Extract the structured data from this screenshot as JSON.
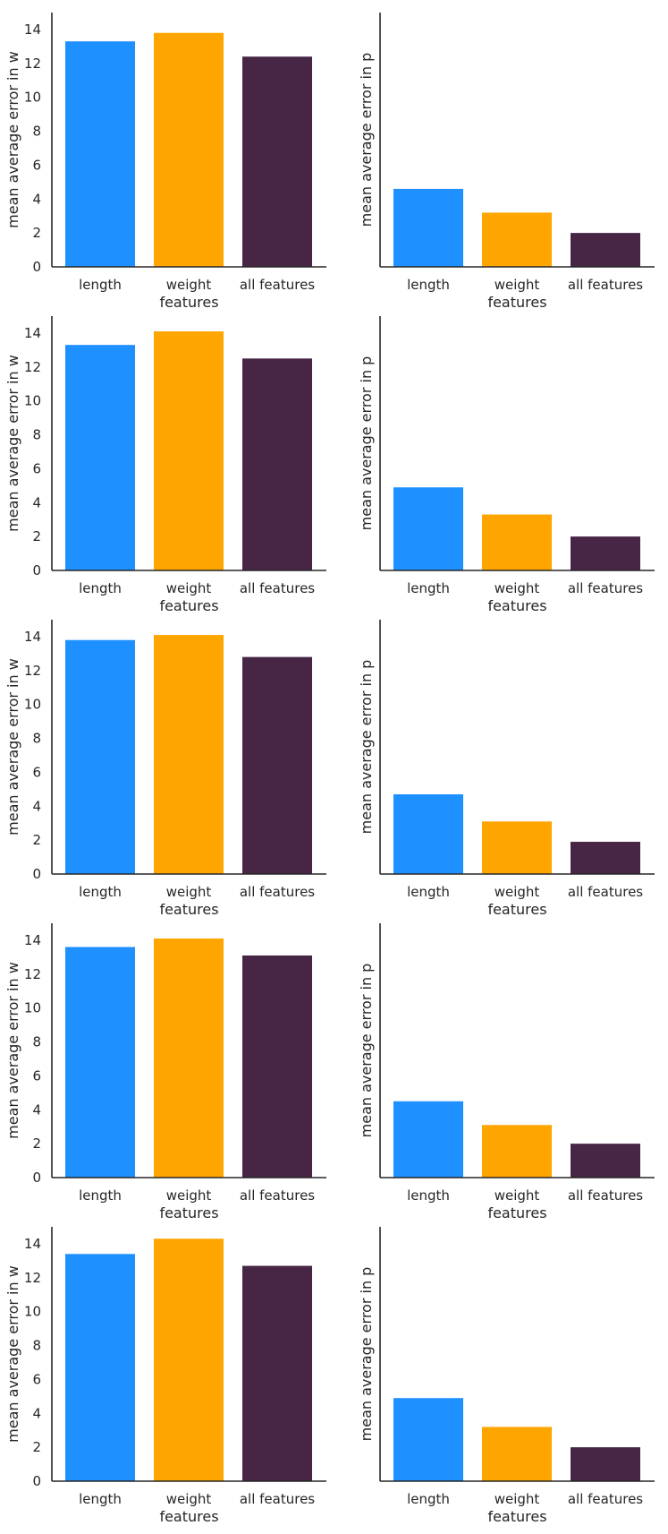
{
  "colors": {
    "axis": "#262626",
    "background": "#ffffff",
    "bars": [
      "#1e90ff",
      "#ffa500",
      "#472545"
    ]
  },
  "chart_data": [
    {
      "type": "bar",
      "panel": "row-1-left",
      "categories": [
        "length",
        "weight",
        "all features"
      ],
      "values": [
        13.3,
        13.8,
        12.4
      ],
      "title": "",
      "xlabel": "features",
      "ylabel": "mean average error in w",
      "ylim": [
        0,
        15
      ],
      "yticks": [
        "0",
        "2",
        "4",
        "6",
        "8",
        "10",
        "12",
        "14"
      ],
      "grid": false
    },
    {
      "type": "bar",
      "panel": "row-1-right",
      "categories": [
        "length",
        "weight",
        "all features"
      ],
      "values": [
        4.6,
        3.2,
        2.0
      ],
      "title": "",
      "xlabel": "features",
      "ylabel": "mean average error in p",
      "ylim": [
        0,
        15
      ],
      "yticks": [],
      "grid": false
    },
    {
      "type": "bar",
      "panel": "row-2-left",
      "categories": [
        "length",
        "weight",
        "all features"
      ],
      "values": [
        13.3,
        14.1,
        12.5
      ],
      "title": "",
      "xlabel": "features",
      "ylabel": "mean average error in w",
      "ylim": [
        0,
        15
      ],
      "yticks": [
        "0",
        "2",
        "4",
        "6",
        "8",
        "10",
        "12",
        "14"
      ],
      "grid": false
    },
    {
      "type": "bar",
      "panel": "row-2-right",
      "categories": [
        "length",
        "weight",
        "all features"
      ],
      "values": [
        4.9,
        3.3,
        2.0
      ],
      "title": "",
      "xlabel": "features",
      "ylabel": "mean average error in p",
      "ylim": [
        0,
        15
      ],
      "yticks": [],
      "grid": false
    },
    {
      "type": "bar",
      "panel": "row-3-left",
      "categories": [
        "length",
        "weight",
        "all features"
      ],
      "values": [
        13.8,
        14.1,
        12.8
      ],
      "title": "",
      "xlabel": "features",
      "ylabel": "mean average error in w",
      "ylim": [
        0,
        15
      ],
      "yticks": [
        "0",
        "2",
        "4",
        "6",
        "8",
        "10",
        "12",
        "14"
      ],
      "grid": false
    },
    {
      "type": "bar",
      "panel": "row-3-right",
      "categories": [
        "length",
        "weight",
        "all features"
      ],
      "values": [
        4.7,
        3.1,
        1.9
      ],
      "title": "",
      "xlabel": "features",
      "ylabel": "mean average error in p",
      "ylim": [
        0,
        15
      ],
      "yticks": [],
      "grid": false
    },
    {
      "type": "bar",
      "panel": "row-4-left",
      "categories": [
        "length",
        "weight",
        "all features"
      ],
      "values": [
        13.6,
        14.1,
        13.1
      ],
      "title": "",
      "xlabel": "features",
      "ylabel": "mean average error in w",
      "ylim": [
        0,
        15
      ],
      "yticks": [
        "0",
        "2",
        "4",
        "6",
        "8",
        "10",
        "12",
        "14"
      ],
      "grid": false
    },
    {
      "type": "bar",
      "panel": "row-4-right",
      "categories": [
        "length",
        "weight",
        "all features"
      ],
      "values": [
        4.5,
        3.1,
        2.0
      ],
      "title": "",
      "xlabel": "features",
      "ylabel": "mean average error in p",
      "ylim": [
        0,
        15
      ],
      "yticks": [],
      "grid": false
    },
    {
      "type": "bar",
      "panel": "row-5-left",
      "categories": [
        "length",
        "weight",
        "all features"
      ],
      "values": [
        13.4,
        14.3,
        12.7
      ],
      "title": "",
      "xlabel": "features",
      "ylabel": "mean average error in w",
      "ylim": [
        0,
        15
      ],
      "yticks": [
        "0",
        "2",
        "4",
        "6",
        "8",
        "10",
        "12",
        "14"
      ],
      "grid": false
    },
    {
      "type": "bar",
      "panel": "row-5-right",
      "categories": [
        "length",
        "weight",
        "all features"
      ],
      "values": [
        4.9,
        3.2,
        2.0
      ],
      "title": "",
      "xlabel": "features",
      "ylabel": "mean average error in p",
      "ylim": [
        0,
        15
      ],
      "yticks": [],
      "grid": false
    }
  ]
}
